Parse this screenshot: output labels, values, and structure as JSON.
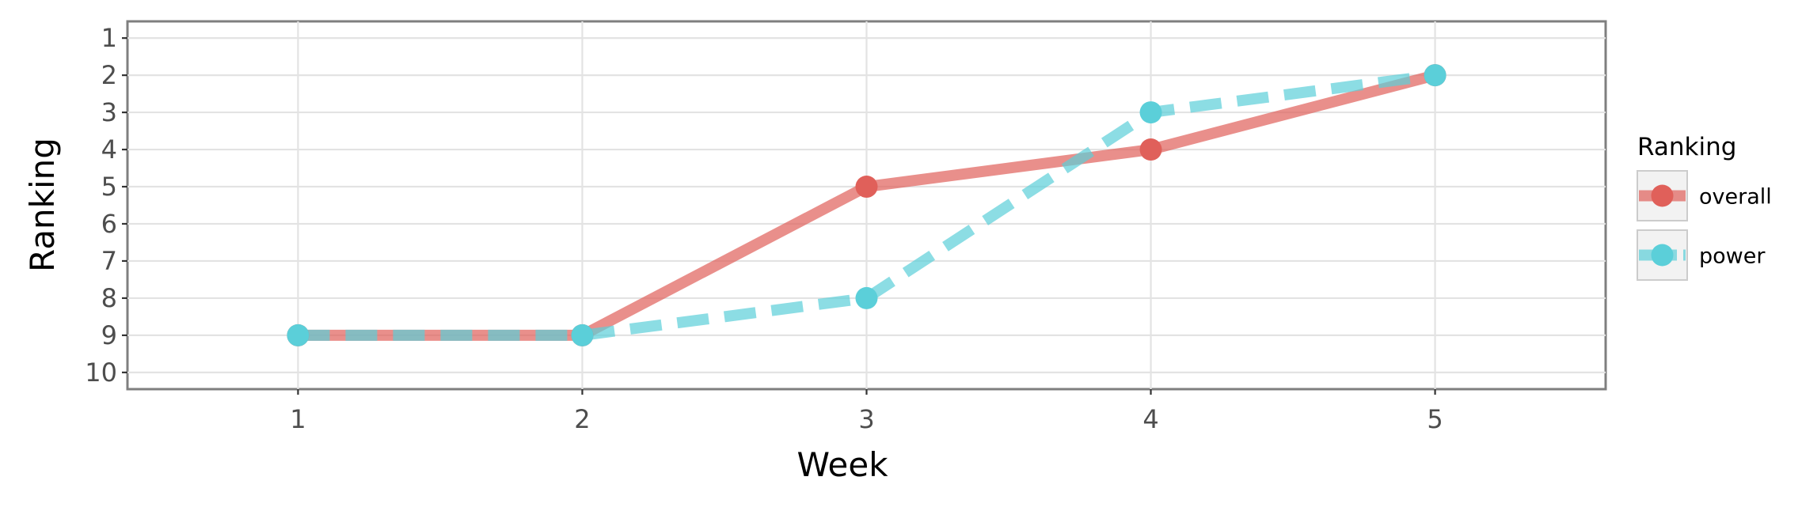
{
  "chart_data": {
    "type": "line",
    "xlabel": "Week",
    "ylabel": "Ranking",
    "x": [
      1,
      2,
      3,
      4,
      5
    ],
    "x_ticks": [
      1,
      2,
      3,
      4,
      5
    ],
    "y_ticks": [
      1,
      2,
      3,
      4,
      5,
      6,
      7,
      8,
      9,
      10
    ],
    "xlim": [
      0.4,
      5.6
    ],
    "ylim": [
      10.45,
      0.55
    ],
    "y_reversed": true,
    "grid": true,
    "legend": {
      "title": "Ranking",
      "position": "right"
    },
    "series": [
      {
        "name": "overall",
        "color": "#e0605a",
        "line_style": "solid",
        "values": [
          9,
          9,
          5,
          4,
          2
        ]
      },
      {
        "name": "power",
        "color": "#5bcfd9",
        "line_style": "dashed",
        "values": [
          9,
          9,
          8,
          3,
          2
        ]
      }
    ]
  }
}
